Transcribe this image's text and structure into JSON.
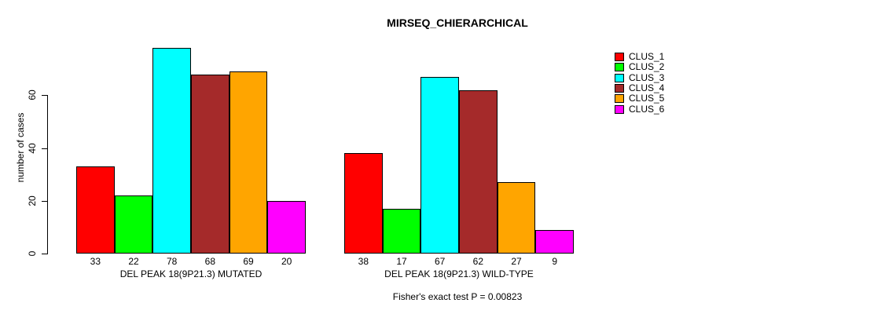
{
  "title": "MIRSEQ_CHIERARCHICAL",
  "ylabel": "number of cases",
  "footer": "Fisher's exact test P = 0.00823",
  "chart_data": {
    "type": "bar",
    "title": "MIRSEQ_CHIERARCHICAL",
    "xlabel": "",
    "ylabel": "number of cases",
    "yticks": [
      0,
      20,
      40,
      60
    ],
    "ylim": [
      0,
      80
    ],
    "grid": false,
    "legend_position": "right",
    "series": [
      {
        "name": "CLUS_1",
        "color": "#FF0000"
      },
      {
        "name": "CLUS_2",
        "color": "#00FF00"
      },
      {
        "name": "CLUS_3",
        "color": "#00FFFF"
      },
      {
        "name": "CLUS_4",
        "color": "#A52A2A"
      },
      {
        "name": "CLUS_5",
        "color": "#FFA500"
      },
      {
        "name": "CLUS_6",
        "color": "#FF00FF"
      }
    ],
    "groups": [
      {
        "label": "DEL PEAK 18(9P21.3) MUTATED",
        "values": [
          33,
          22,
          78,
          68,
          69,
          20
        ]
      },
      {
        "label": "DEL PEAK 18(9P21.3) WILD-TYPE",
        "values": [
          38,
          17,
          67,
          62,
          27,
          9
        ]
      }
    ],
    "annotation": "Fisher's exact test P = 0.00823"
  }
}
